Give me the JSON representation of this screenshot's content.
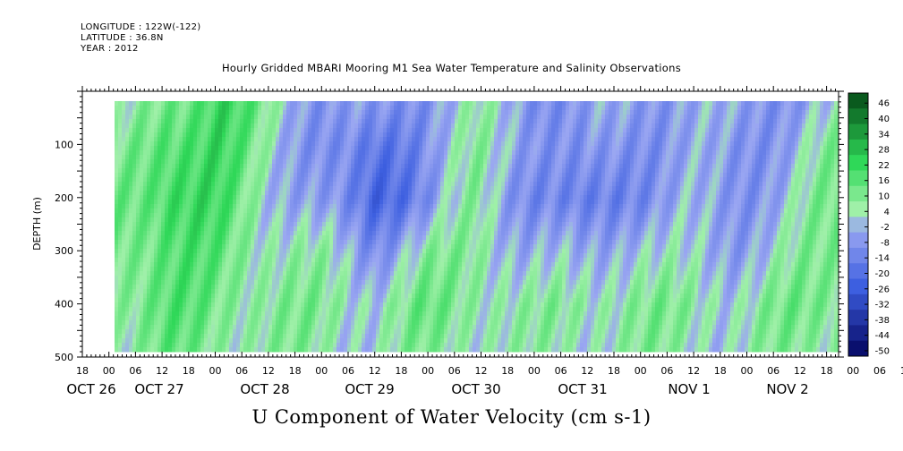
{
  "header": {
    "longitude": "LONGITUDE : 122W(-122)",
    "latitude": "LATITUDE : 36.8N",
    "year": "YEAR : 2012"
  },
  "chart_data": {
    "type": "heatmap",
    "title": "Hourly Gridded MBARI Mooring M1 Sea Water Temperature and Salinity Observations",
    "subtitle": "U Component of Water Velocity (cm s-1)",
    "ylabel": "DEPTH (m)",
    "xlabel": "",
    "y_ticks": [
      100,
      200,
      300,
      400,
      500
    ],
    "y_range": [
      0,
      500
    ],
    "y_inverted": true,
    "x_hour_ticks": [
      "18",
      "00",
      "06",
      "12",
      "18",
      "00",
      "06",
      "12",
      "18",
      "00",
      "06",
      "12",
      "18",
      "00",
      "06",
      "12",
      "18",
      "00",
      "06",
      "12",
      "18",
      "00",
      "06",
      "12",
      "18",
      "00",
      "06",
      "12",
      "18",
      "00",
      "06",
      "12",
      "18"
    ],
    "x_day_labels": [
      "OCT 26",
      "OCT 27",
      "OCT 28",
      "OCT 29",
      "OCT 30",
      "OCT 31",
      "NOV  1",
      "NOV  2"
    ],
    "colorbar_levels": [
      46,
      40,
      34,
      28,
      22,
      16,
      10,
      4,
      -2,
      -8,
      -14,
      -20,
      -26,
      -32,
      -38,
      -44,
      -50
    ],
    "colors": {
      "strong_negative": "#0a0f6e",
      "moderate_negative": "#3d5fe0",
      "weak_negative": "#9aa6f2",
      "weak_positive": "#9ff0a8",
      "moderate_positive": "#2fd858",
      "strong_positive": "#0a5a1e"
    },
    "velocity_field_cm_s": {
      "description_depths_m": [
        20,
        100,
        200,
        300,
        400,
        490
      ],
      "times_day_offset": [
        0.0,
        0.5,
        1.0,
        1.5,
        2.0,
        2.5,
        3.0,
        3.5,
        4.0,
        4.5,
        5.0,
        5.5,
        6.0,
        6.5,
        7.0
      ],
      "values": [
        [
          -4,
          14,
          20,
          6,
          -8,
          -12,
          -6,
          2,
          -6,
          -10,
          -6,
          -4,
          -8,
          -6,
          -2
        ],
        [
          4,
          20,
          18,
          4,
          -12,
          -20,
          -8,
          4,
          -4,
          -14,
          -8,
          -6,
          -10,
          -4,
          6
        ],
        [
          10,
          22,
          16,
          2,
          -10,
          -22,
          -12,
          6,
          -10,
          -20,
          -10,
          -6,
          -8,
          -2,
          10
        ],
        [
          12,
          16,
          12,
          6,
          2,
          -8,
          4,
          8,
          -4,
          -6,
          2,
          -2,
          -4,
          2,
          10
        ],
        [
          10,
          14,
          10,
          8,
          6,
          4,
          10,
          8,
          4,
          6,
          8,
          6,
          4,
          8,
          12
        ],
        [
          6,
          10,
          8,
          6,
          4,
          2,
          6,
          6,
          2,
          4,
          6,
          4,
          2,
          6,
          8
        ]
      ]
    }
  }
}
